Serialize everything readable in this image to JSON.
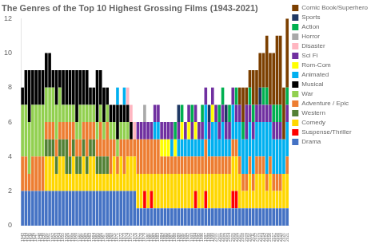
{
  "chart_data": {
    "type": "bar",
    "title": "The Genres of the Top 10 Highest Grossing Films (1943-2021)",
    "stacked": true,
    "grid": false,
    "legend": "right",
    "categories": [
      "1943",
      "1944",
      "1945",
      "1946",
      "1947",
      "1948",
      "1949",
      "1950",
      "1951",
      "1952",
      "1953",
      "1954",
      "1955",
      "1956",
      "1957",
      "1958",
      "1959",
      "1960",
      "1961",
      "1962",
      "1963",
      "1964",
      "1965",
      "1966",
      "1967",
      "1968",
      "1969",
      "1970",
      "1971",
      "1972",
      "1973",
      "1974",
      "1975",
      "1976",
      "1977",
      "1978",
      "1979",
      "1980",
      "1981",
      "1982",
      "1983",
      "1984",
      "1985",
      "1986",
      "1987",
      "1988",
      "1989",
      "1990",
      "1991",
      "1992",
      "1993",
      "1994",
      "1995",
      "1996",
      "1997",
      "1998",
      "1999",
      "2000",
      "2001",
      "2002",
      "2003",
      "2004",
      "2005",
      "2006",
      "2007",
      "2008",
      "2009",
      "2010",
      "2011",
      "2012",
      "2013",
      "2014",
      "2015",
      "2016",
      "2017",
      "2018",
      "2019",
      "2020",
      "2021"
    ],
    "ylim": [
      0,
      12
    ],
    "yticks": [
      0,
      2,
      4,
      6,
      8,
      10,
      12
    ],
    "series": [
      {
        "name": "Drama",
        "color": "#4472C4",
        "values": [
          2,
          2,
          2,
          2,
          2,
          2,
          2,
          2,
          2,
          2,
          2,
          2,
          2,
          2,
          2,
          2,
          2,
          2,
          2,
          2,
          2,
          2,
          2,
          2,
          2,
          2,
          2,
          2,
          2,
          2,
          2,
          2,
          2,
          2,
          1,
          1,
          1,
          1,
          1,
          1,
          1,
          1,
          1,
          1,
          1,
          1,
          1,
          1,
          1,
          1,
          1,
          1,
          1,
          1,
          1,
          1,
          1,
          1,
          1,
          1,
          1,
          1,
          1,
          1,
          1,
          1,
          1,
          1,
          1,
          1,
          1,
          1,
          1,
          1,
          1,
          1,
          1,
          1,
          1
        ]
      },
      {
        "name": "Suspense/Thriller",
        "color": "#FF0000",
        "values": [
          0,
          0,
          0,
          0,
          0,
          0,
          0,
          0,
          0,
          0,
          0,
          0,
          0,
          0,
          0,
          0,
          0,
          0,
          0,
          0,
          0,
          0,
          0,
          0,
          0,
          0,
          0,
          0,
          0,
          0,
          0,
          0,
          0,
          0,
          0,
          0,
          1,
          0,
          1,
          0,
          0,
          0,
          0,
          0,
          0,
          0,
          0,
          0,
          0,
          0,
          0,
          1,
          0,
          0,
          1,
          0,
          0,
          0,
          0,
          0,
          0,
          0,
          1,
          1,
          0,
          0,
          0,
          0,
          0,
          0,
          0,
          0,
          0,
          0,
          0,
          0,
          0,
          0,
          0
        ]
      },
      {
        "name": "Comedy",
        "color": "#FFD700",
        "values": [
          0,
          0,
          0,
          0,
          0,
          0,
          0,
          2,
          2,
          2,
          1,
          2,
          2,
          1,
          1,
          2,
          1,
          1,
          2,
          1,
          2,
          2,
          1,
          1,
          1,
          1,
          1,
          2,
          1,
          2,
          1,
          2,
          2,
          2,
          2,
          2,
          1,
          2,
          1,
          2,
          2,
          2,
          2,
          2,
          2,
          2,
          2,
          2,
          2,
          2,
          2,
          1,
          2,
          2,
          1,
          2,
          2,
          2,
          2,
          2,
          2,
          2,
          2,
          2,
          2,
          1,
          1,
          2,
          1,
          2,
          2,
          2,
          1,
          2,
          1,
          1,
          1,
          2,
          2
        ]
      },
      {
        "name": "Western",
        "color": "#538135",
        "values": [
          0,
          0,
          0,
          0,
          0,
          0,
          0,
          1,
          1,
          1,
          1,
          1,
          1,
          2,
          1,
          1,
          1,
          1,
          1,
          1,
          1,
          1,
          1,
          1,
          1,
          1,
          0,
          0,
          0,
          0,
          0,
          0,
          0,
          0,
          0,
          0,
          0,
          0,
          0,
          0,
          0,
          0,
          0,
          0,
          0,
          0,
          0,
          0,
          0,
          0,
          0,
          0,
          0,
          0,
          0,
          0,
          0,
          0,
          0,
          0,
          0,
          0,
          0,
          0,
          0,
          0,
          0,
          0,
          0,
          0,
          0,
          0,
          0,
          0,
          0,
          0,
          0,
          0,
          0
        ]
      },
      {
        "name": "Adventure / Epic",
        "color": "#ED7D31",
        "values": [
          2,
          2,
          1,
          2,
          2,
          2,
          2,
          1,
          1,
          1,
          1,
          1,
          1,
          1,
          2,
          1,
          1,
          1,
          1,
          2,
          1,
          1,
          1,
          2,
          1,
          2,
          2,
          1,
          1,
          1,
          2,
          1,
          1,
          1,
          2,
          2,
          2,
          2,
          2,
          2,
          2,
          1,
          1,
          1,
          1,
          1,
          1,
          1,
          1,
          1,
          1,
          1,
          1,
          1,
          2,
          1,
          1,
          1,
          1,
          1,
          1,
          1,
          1,
          1,
          1,
          1,
          1,
          1,
          1,
          1,
          1,
          1,
          1,
          1,
          1,
          1,
          1,
          0,
          1
        ]
      },
      {
        "name": "War",
        "color": "#92D050",
        "values": [
          3,
          3,
          3,
          3,
          3,
          3,
          3,
          2,
          2,
          2,
          2,
          2,
          1,
          1,
          1,
          1,
          1,
          2,
          1,
          1,
          1,
          1,
          1,
          1,
          1,
          1,
          1,
          1,
          1,
          1,
          1,
          1,
          0,
          0,
          0,
          0,
          0,
          0,
          0,
          0,
          0,
          0,
          0,
          0,
          0,
          0,
          0,
          0,
          0,
          0,
          0,
          0,
          0,
          0,
          0,
          0,
          0,
          0,
          0,
          0,
          0,
          0,
          0,
          0,
          0,
          0,
          0,
          0,
          0,
          0,
          0,
          0,
          0,
          0,
          0,
          0,
          0,
          0,
          0
        ]
      },
      {
        "name": "Musical",
        "color": "#000000",
        "values": [
          1,
          2,
          3,
          2,
          2,
          2,
          2,
          2,
          2,
          1,
          2,
          1,
          2,
          2,
          2,
          2,
          3,
          2,
          2,
          2,
          1,
          1,
          3,
          2,
          2,
          1,
          1,
          1,
          2,
          1,
          1,
          1,
          1,
          0,
          0,
          0,
          0,
          0,
          0,
          0,
          0,
          0,
          0,
          0,
          0,
          0,
          0,
          0,
          0,
          0,
          0,
          0,
          0,
          0,
          0,
          0,
          0,
          0,
          0,
          0,
          0,
          0,
          0,
          0,
          0,
          0,
          0,
          0,
          0,
          0,
          0,
          0,
          0,
          0,
          0,
          0,
          0,
          0,
          0
        ]
      },
      {
        "name": "Animated",
        "color": "#00B0F0",
        "values": [
          0,
          0,
          0,
          0,
          0,
          0,
          0,
          0,
          0,
          0,
          0,
          0,
          0,
          0,
          0,
          0,
          0,
          0,
          0,
          0,
          0,
          0,
          0,
          0,
          0,
          0,
          0,
          0,
          1,
          0,
          1,
          0,
          0,
          0,
          0,
          0,
          0,
          0,
          0,
          1,
          1,
          0,
          0,
          0,
          1,
          0,
          1,
          1,
          1,
          1,
          1,
          1,
          1,
          1,
          2,
          1,
          2,
          2,
          1,
          2,
          1,
          1,
          2,
          1,
          2,
          2,
          2,
          2,
          2,
          2,
          2,
          2,
          3,
          2,
          2,
          2,
          2,
          2,
          2
        ]
      },
      {
        "name": "Rom-Com",
        "color": "#FFFF00",
        "values": [
          0,
          0,
          0,
          0,
          0,
          0,
          0,
          0,
          0,
          0,
          0,
          0,
          0,
          0,
          0,
          0,
          0,
          0,
          0,
          0,
          0,
          0,
          0,
          0,
          0,
          0,
          0,
          0,
          0,
          0,
          0,
          0,
          0,
          0,
          0,
          0,
          0,
          0,
          0,
          0,
          0,
          1,
          1,
          1,
          0,
          1,
          0,
          1,
          0,
          1,
          0,
          1,
          0,
          0,
          0,
          0,
          1,
          0,
          0,
          0,
          0,
          0,
          0,
          0,
          0,
          0,
          0,
          0,
          0,
          0,
          0,
          0,
          0,
          0,
          0,
          0,
          0,
          0,
          0
        ]
      },
      {
        "name": "Sci Fi",
        "color": "#7030A0",
        "values": [
          0,
          0,
          0,
          0,
          0,
          0,
          0,
          0,
          0,
          0,
          0,
          0,
          0,
          0,
          0,
          0,
          0,
          0,
          0,
          0,
          0,
          0,
          0,
          0,
          0,
          0,
          0,
          0,
          0,
          0,
          0,
          0,
          0,
          0,
          1,
          1,
          1,
          1,
          1,
          1,
          1,
          1,
          1,
          1,
          1,
          0,
          1,
          0,
          1,
          1,
          1,
          1,
          1,
          1,
          1,
          1,
          1,
          1,
          1,
          1,
          1,
          1,
          1,
          1,
          1,
          0,
          2,
          1,
          1,
          1,
          1,
          1,
          1,
          1,
          1,
          1,
          1,
          0,
          1
        ]
      },
      {
        "name": "Disaster",
        "color": "#FFB6C1",
        "values": [
          0,
          0,
          0,
          0,
          0,
          0,
          0,
          0,
          0,
          0,
          0,
          0,
          0,
          0,
          0,
          0,
          0,
          0,
          0,
          0,
          0,
          0,
          0,
          0,
          0,
          0,
          0,
          0,
          0,
          0,
          0,
          1,
          1,
          1,
          0,
          0,
          0,
          0,
          0,
          0,
          0,
          0,
          0,
          0,
          0,
          0,
          0,
          0,
          0,
          0,
          0,
          0,
          0,
          0,
          0,
          0,
          0,
          0,
          0,
          0,
          0,
          0,
          0,
          0,
          0,
          0,
          0,
          0,
          0,
          0,
          0,
          0,
          0,
          0,
          0,
          0,
          0,
          0,
          0
        ]
      },
      {
        "name": "Horror",
        "color": "#A9A9A9",
        "values": [
          0,
          0,
          0,
          0,
          0,
          0,
          0,
          0,
          0,
          0,
          0,
          0,
          0,
          0,
          0,
          0,
          0,
          0,
          0,
          0,
          0,
          0,
          0,
          0,
          0,
          0,
          0,
          0,
          0,
          0,
          0,
          0,
          0,
          0,
          0,
          0,
          1,
          0,
          0,
          0,
          0,
          0,
          0,
          0,
          0,
          0,
          0,
          0,
          0,
          0,
          0,
          0,
          0,
          0,
          0,
          0,
          0,
          0,
          0,
          0,
          0,
          0,
          0,
          0,
          0,
          0,
          0,
          0,
          0,
          0,
          0,
          0,
          0,
          0,
          0,
          0,
          0,
          0,
          0
        ]
      },
      {
        "name": "Action",
        "color": "#00B050",
        "values": [
          0,
          0,
          0,
          0,
          0,
          0,
          0,
          0,
          0,
          0,
          0,
          0,
          0,
          0,
          0,
          0,
          0,
          0,
          0,
          0,
          0,
          0,
          0,
          0,
          0,
          0,
          0,
          0,
          0,
          0,
          0,
          0,
          0,
          0,
          0,
          0,
          0,
          0,
          0,
          0,
          0,
          0,
          0,
          0,
          0,
          1,
          0,
          1,
          0,
          0,
          1,
          0,
          0,
          1,
          0,
          0,
          0,
          0,
          1,
          1,
          0,
          1,
          0,
          1,
          0,
          1,
          0,
          1,
          1,
          0,
          0,
          1,
          1,
          0,
          1,
          1,
          1,
          0,
          1
        ]
      },
      {
        "name": "Sports",
        "color": "#1F3864",
        "values": [
          0,
          0,
          0,
          0,
          0,
          0,
          0,
          0,
          0,
          0,
          0,
          0,
          0,
          0,
          0,
          0,
          0,
          0,
          0,
          0,
          0,
          0,
          0,
          0,
          0,
          0,
          0,
          0,
          0,
          0,
          0,
          0,
          0,
          0,
          0,
          0,
          0,
          0,
          0,
          0,
          0,
          0,
          0,
          0,
          0,
          0,
          1,
          0,
          0,
          0,
          0,
          0,
          0,
          0,
          0,
          1,
          0,
          0,
          0,
          0,
          1,
          0,
          0,
          0,
          0,
          0,
          0,
          0,
          0,
          0,
          1,
          0,
          0,
          0,
          0,
          0,
          0,
          0,
          0
        ]
      },
      {
        "name": "Comic Book/Superhero",
        "color": "#7B3F00",
        "values": [
          0,
          0,
          0,
          0,
          0,
          0,
          0,
          0,
          0,
          0,
          0,
          0,
          0,
          0,
          0,
          0,
          0,
          0,
          0,
          0,
          0,
          0,
          0,
          0,
          0,
          0,
          0,
          0,
          0,
          0,
          0,
          0,
          0,
          0,
          0,
          0,
          0,
          0,
          0,
          0,
          0,
          0,
          0,
          0,
          0,
          0,
          0,
          0,
          0,
          0,
          0,
          0,
          0,
          0,
          0,
          0,
          0,
          0,
          0,
          0,
          0,
          0,
          0,
          0,
          1,
          2,
          1,
          1,
          2,
          2,
          2,
          2,
          3,
          3,
          3,
          4,
          4,
          3,
          4
        ]
      }
    ]
  }
}
